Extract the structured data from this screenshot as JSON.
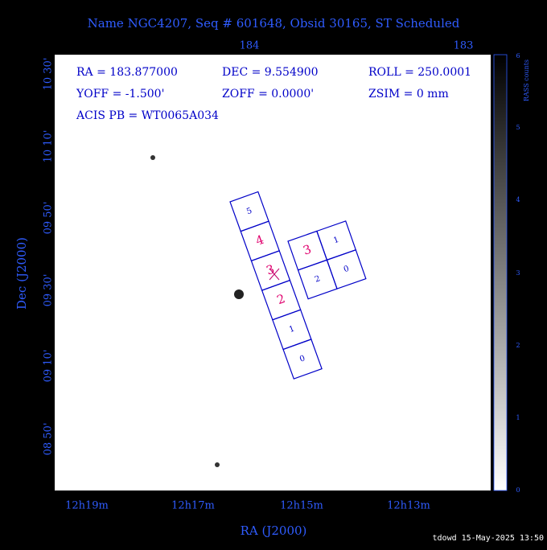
{
  "title": "Name NGC4207, Seq # 601648, Obsid 30165, ST Scheduled",
  "info": {
    "ra": "RA = 183.877000",
    "dec": "DEC = 9.554900",
    "roll": "ROLL = 250.0001",
    "yoff": "YOFF = -1.500'",
    "zoff": "ZOFF = 0.0000'",
    "zsim": "ZSIM = 0 mm",
    "acis_pb": "ACIS PB = WT0065A034"
  },
  "axes": {
    "top_ticks": [
      "184",
      "183"
    ],
    "left_ticks": [
      "10 30'",
      "10 10'",
      "09 50'",
      "09 30'",
      "09 10'",
      "08 50'"
    ],
    "bottom_ticks": [
      "12h19m",
      "12h17m",
      "12h15m",
      "12h13m"
    ],
    "x_label": "RA (J2000)",
    "y_label": "Dec (J2000)"
  },
  "colorbar": {
    "label": "RASS counts",
    "ticks": [
      0,
      1,
      2,
      3,
      4,
      5,
      6
    ]
  },
  "acis_s": {
    "chips": [
      "5",
      "4",
      "3",
      "2",
      "1",
      "0"
    ]
  },
  "acis_i": {
    "chips": [
      "3",
      "1",
      "2",
      "0"
    ]
  },
  "footer": "tdowd 15-May-2025 13:50"
}
